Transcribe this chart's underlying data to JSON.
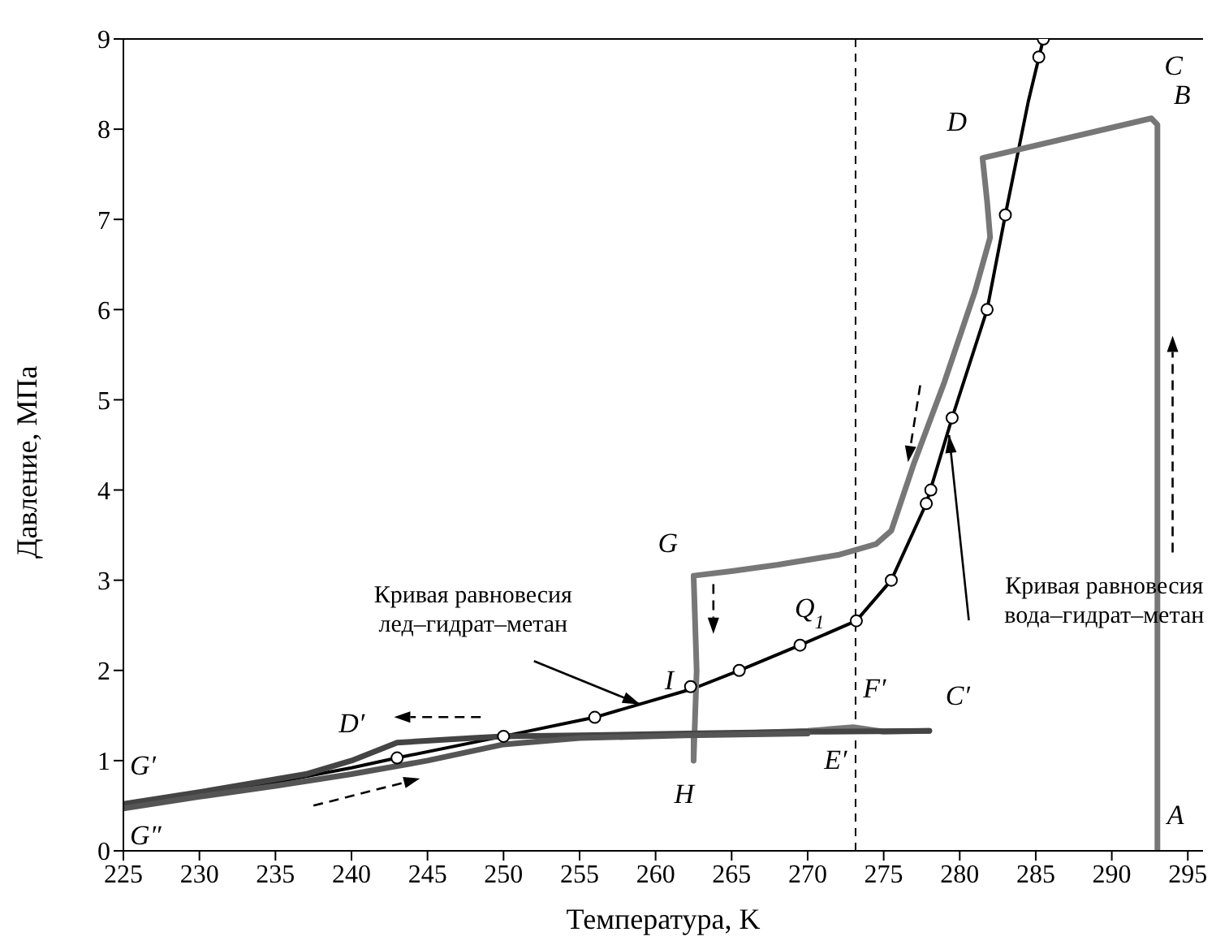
{
  "chart_data": {
    "type": "line",
    "xlabel": "Температура, K",
    "ylabel": "Давление, МПа",
    "xlim": [
      225,
      296
    ],
    "xticks": [
      225,
      230,
      235,
      240,
      245,
      250,
      255,
      260,
      265,
      270,
      275,
      280,
      285,
      290,
      295
    ],
    "ylim": [
      0,
      9
    ],
    "yticks": [
      0,
      1,
      2,
      3,
      4,
      5,
      6,
      7,
      8,
      9
    ],
    "grid": false,
    "legend": false,
    "series": [
      {
        "color": "#000000",
        "marker": "none",
        "x": [
          225,
          230,
          235,
          240,
          243,
          250,
          256,
          262.5,
          265.5,
          269.5,
          273.2,
          275.5,
          277.8,
          279.5,
          281.8,
          283,
          284.5,
          285.5
        ],
        "values": [
          0.5,
          0.62,
          0.76,
          0.92,
          1.03,
          1.27,
          1.48,
          1.8,
          2.0,
          2.28,
          2.55,
          3.0,
          3.85,
          4.8,
          6.0,
          7.05,
          8.3,
          9.0
        ]
      },
      {
        "type": "scatter",
        "color": "#000000",
        "marker": "circle",
        "x": [
          243,
          250,
          256,
          262.3,
          265.5,
          269.5,
          273.2,
          275.5,
          277.8,
          278.1,
          279.5,
          281.8,
          283,
          285.2,
          285.5
        ],
        "values": [
          1.03,
          1.27,
          1.48,
          1.82,
          2.0,
          2.28,
          2.55,
          3.0,
          3.85,
          4.0,
          4.8,
          6.0,
          7.05,
          8.8,
          9.0
        ]
      },
      {
        "color": "#777777",
        "marker": "none",
        "x": [
          293,
          293,
          293,
          293,
          292.6,
          281.5,
          281.8,
          282,
          281,
          279,
          277,
          276,
          275.5,
          274.5,
          272,
          268,
          265,
          262.5,
          262.7,
          262.5,
          262.5,
          265,
          270,
          273,
          275,
          278
        ],
        "values": [
          0,
          1,
          4,
          8.05,
          8.12,
          7.68,
          7.2,
          6.8,
          6.2,
          5.2,
          4.3,
          3.8,
          3.55,
          3.4,
          3.28,
          3.17,
          3.1,
          3.05,
          2.0,
          1.0,
          1.3,
          1.3,
          1.33,
          1.37,
          1.32,
          1.33
        ]
      },
      {
        "color": "#444444",
        "marker": "none",
        "x": [
          278,
          270,
          262,
          255,
          250,
          248,
          243,
          240,
          237,
          230,
          225
        ],
        "values": [
          1.33,
          1.32,
          1.3,
          1.28,
          1.27,
          1.25,
          1.2,
          1.0,
          0.85,
          0.65,
          0.52
        ]
      },
      {
        "color": "#555555",
        "marker": "none",
        "x": [
          225,
          230,
          235,
          240,
          245,
          250,
          255,
          262,
          270
        ],
        "values": [
          0.47,
          0.6,
          0.72,
          0.85,
          1.0,
          1.18,
          1.25,
          1.28,
          1.3
        ]
      }
    ],
    "ref_lines": [
      {
        "axis": "x",
        "value": 273.15,
        "color": "#000000",
        "line_style": "dashed"
      }
    ],
    "annotations": [
      {
        "text": "A",
        "x": 293,
        "y": 0.3
      },
      {
        "text": "B",
        "x": 293,
        "y": 8.05
      },
      {
        "text": "C",
        "x": 292.6,
        "y": 8.12
      },
      {
        "text": "D",
        "x": 281.5,
        "y": 7.68
      },
      {
        "text": "G",
        "x": 262.5,
        "y": 3.05
      },
      {
        "text": "I",
        "x": 262.3,
        "y": 1.82
      },
      {
        "text": "H",
        "x": 262.5,
        "y": 1.0
      },
      {
        "text": "Q$_{1}$",
        "x": 273.2,
        "y": 2.55
      },
      {
        "text": "F′",
        "x": 273,
        "y": 1.37
      },
      {
        "text": "E′",
        "x": 273,
        "y": 1.3
      },
      {
        "text": "C′",
        "x": 278,
        "y": 1.33
      },
      {
        "text": "D′",
        "x": 243,
        "y": 1.2
      },
      {
        "text": "G′",
        "x": 225,
        "y": 0.52
      },
      {
        "text": "G″",
        "x": 225,
        "y": 0.47
      },
      {
        "text": "Кривая равновесия\nлед–гидрат–метан",
        "x": 259,
        "y": 1.62
      },
      "Кривая равновесия\nвода–гидрат–метан"
    ]
  }
}
